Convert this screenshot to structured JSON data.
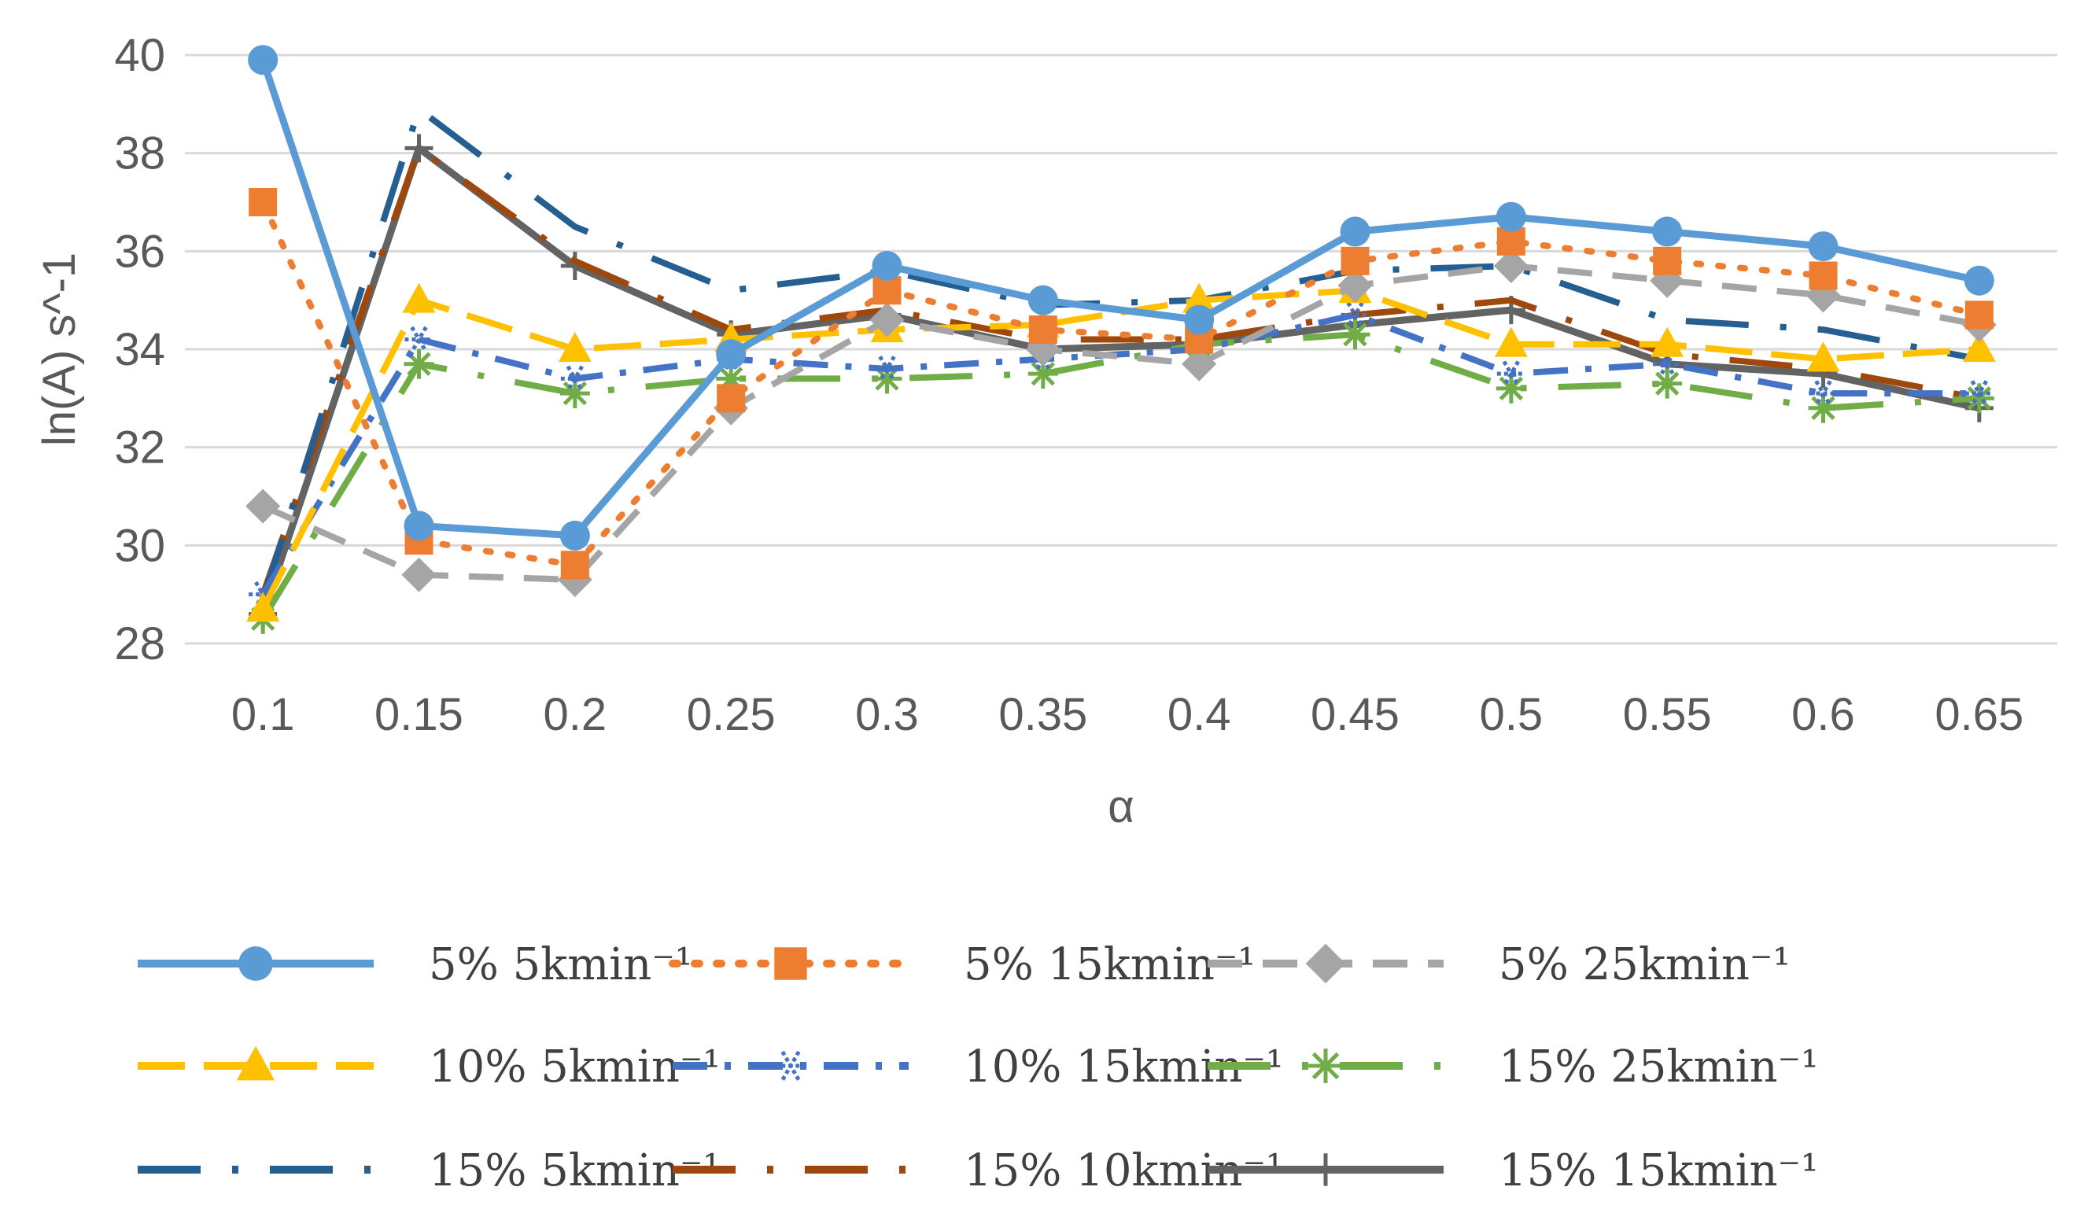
{
  "chart_data": {
    "type": "line",
    "title": "",
    "xlabel": "α",
    "ylabel": "ln(A) s^-1",
    "ylim": [
      28,
      40
    ],
    "yticks": [
      28,
      30,
      32,
      34,
      36,
      38,
      40
    ],
    "grid": true,
    "legend_position": "bottom",
    "x": [
      "0.1",
      "0.15",
      "0.2",
      "0.25",
      "0.3",
      "0.35",
      "0.4",
      "0.45",
      "0.5",
      "0.55",
      "0.6",
      "0.65"
    ],
    "series": [
      {
        "name": "5% 5kmin⁻¹",
        "color": "#5B9BD5",
        "dash": "solid",
        "marker": "circle",
        "values": [
          39.9,
          30.4,
          30.2,
          33.9,
          35.7,
          35.0,
          34.6,
          36.4,
          36.7,
          36.4,
          36.1,
          35.4
        ]
      },
      {
        "name": "5% 15kmin⁻¹",
        "color": "#ED7D31",
        "dash": "dot",
        "marker": "square",
        "values": [
          37.0,
          30.1,
          29.6,
          33.0,
          35.2,
          34.4,
          34.2,
          35.8,
          36.2,
          35.8,
          35.5,
          34.7
        ]
      },
      {
        "name": "5% 25kmin⁻¹",
        "color": "#A5A5A5",
        "dash": "dash",
        "marker": "diamond",
        "values": [
          30.8,
          29.4,
          29.3,
          32.8,
          34.6,
          34.0,
          33.7,
          35.3,
          35.7,
          35.4,
          35.1,
          34.5
        ]
      },
      {
        "name": "10% 5kmin⁻¹",
        "color": "#FFC000",
        "dash": "longdash",
        "marker": "triangle",
        "values": [
          28.7,
          35.0,
          34.0,
          34.2,
          34.4,
          34.5,
          35.0,
          35.2,
          34.1,
          34.1,
          33.8,
          34.0
        ]
      },
      {
        "name": "10% 15kmin⁻¹",
        "color": "#4472C4",
        "dash": "dashdot",
        "marker": "star",
        "values": [
          29.0,
          34.2,
          33.4,
          33.8,
          33.6,
          33.8,
          34.0,
          34.7,
          33.5,
          33.7,
          33.1,
          33.1
        ]
      },
      {
        "name": "15% 25kmin⁻¹",
        "color": "#70AD47",
        "dash": "longdashdot",
        "marker": "asterisk",
        "values": [
          28.5,
          33.7,
          33.1,
          33.4,
          33.4,
          33.5,
          34.1,
          34.3,
          33.2,
          33.3,
          32.8,
          33.0
        ]
      },
      {
        "name": "15% 5kmin⁻¹",
        "color": "#255E91",
        "dash": "longdashdot",
        "marker": "none",
        "values": [
          28.9,
          38.9,
          36.5,
          35.2,
          35.6,
          34.9,
          35.0,
          35.6,
          35.7,
          34.6,
          34.4,
          33.8
        ]
      },
      {
        "name": "15% 10kmin⁻¹",
        "color": "#9E480E",
        "dash": "longdashdot",
        "marker": "none",
        "values": [
          29.0,
          38.1,
          35.8,
          34.4,
          34.8,
          34.2,
          34.2,
          34.7,
          35.0,
          33.9,
          33.6,
          33.0
        ]
      },
      {
        "name": "15% 15kmin⁻¹",
        "color": "#636363",
        "dash": "solid",
        "marker": "plus",
        "values": [
          28.6,
          38.1,
          35.7,
          34.3,
          34.7,
          34.0,
          34.1,
          34.5,
          34.8,
          33.7,
          33.5,
          32.8
        ]
      }
    ]
  }
}
